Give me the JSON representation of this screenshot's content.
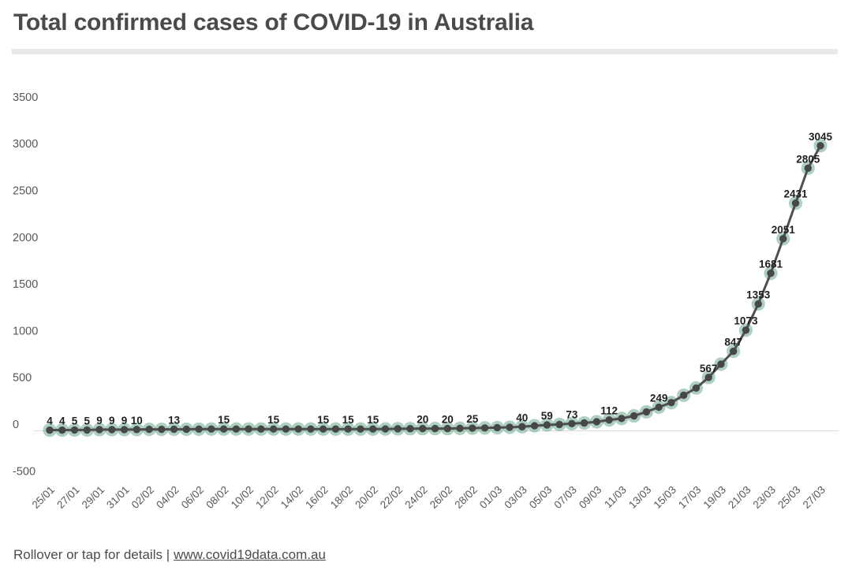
{
  "header": {
    "title": "Total confirmed cases of COVID-19 in Australia"
  },
  "footer": {
    "hint": "Rollover or tap for details |",
    "link": "www.covid19data.com.au"
  },
  "chart_data": {
    "type": "line",
    "title": "Total confirmed cases of COVID-19 in Australia",
    "xlabel": "",
    "ylabel": "",
    "ylim": [
      -500,
      3500
    ],
    "yticks": [
      -500,
      0,
      500,
      1000,
      1500,
      2000,
      2500,
      3000,
      3500
    ],
    "grid": "zero-line-only",
    "legend": "none",
    "x_tick_labels": [
      "25/01",
      "27/01",
      "29/01",
      "31/01",
      "02/02",
      "04/02",
      "06/02",
      "08/02",
      "10/02",
      "12/02",
      "14/02",
      "16/02",
      "18/02",
      "20/02",
      "22/02",
      "24/02",
      "26/02",
      "28/02",
      "01/03",
      "03/03",
      "05/03",
      "07/03",
      "09/03",
      "11/03",
      "13/03",
      "15/03",
      "17/03",
      "19/03",
      "21/03",
      "23/03",
      "25/03",
      "27/03"
    ],
    "series_name": "Total confirmed cases",
    "points": [
      {
        "date": "25/01",
        "value": 4,
        "label": "4"
      },
      {
        "date": "26/01",
        "value": 4,
        "label": "4"
      },
      {
        "date": "27/01",
        "value": 5,
        "label": "5"
      },
      {
        "date": "28/01",
        "value": 5,
        "label": "5"
      },
      {
        "date": "29/01",
        "value": 9,
        "label": "9"
      },
      {
        "date": "30/01",
        "value": 9,
        "label": "9"
      },
      {
        "date": "31/01",
        "value": 9,
        "label": "9"
      },
      {
        "date": "01/02",
        "value": 10,
        "label": "10"
      },
      {
        "date": "02/02",
        "value": 12,
        "label": ""
      },
      {
        "date": "03/02",
        "value": 12,
        "label": ""
      },
      {
        "date": "04/02",
        "value": 13,
        "label": "13"
      },
      {
        "date": "05/02",
        "value": 13,
        "label": ""
      },
      {
        "date": "06/02",
        "value": 14,
        "label": ""
      },
      {
        "date": "07/02",
        "value": 15,
        "label": ""
      },
      {
        "date": "08/02",
        "value": 15,
        "label": "15"
      },
      {
        "date": "09/02",
        "value": 15,
        "label": ""
      },
      {
        "date": "10/02",
        "value": 15,
        "label": ""
      },
      {
        "date": "11/02",
        "value": 15,
        "label": ""
      },
      {
        "date": "12/02",
        "value": 15,
        "label": "15"
      },
      {
        "date": "13/02",
        "value": 15,
        "label": ""
      },
      {
        "date": "14/02",
        "value": 15,
        "label": ""
      },
      {
        "date": "15/02",
        "value": 15,
        "label": ""
      },
      {
        "date": "16/02",
        "value": 15,
        "label": "15"
      },
      {
        "date": "17/02",
        "value": 15,
        "label": ""
      },
      {
        "date": "18/02",
        "value": 15,
        "label": "15"
      },
      {
        "date": "19/02",
        "value": 15,
        "label": ""
      },
      {
        "date": "20/02",
        "value": 15,
        "label": "15"
      },
      {
        "date": "21/02",
        "value": 16,
        "label": ""
      },
      {
        "date": "22/02",
        "value": 18,
        "label": ""
      },
      {
        "date": "23/02",
        "value": 19,
        "label": ""
      },
      {
        "date": "24/02",
        "value": 20,
        "label": "20"
      },
      {
        "date": "25/02",
        "value": 20,
        "label": ""
      },
      {
        "date": "26/02",
        "value": 20,
        "label": "20"
      },
      {
        "date": "27/02",
        "value": 23,
        "label": ""
      },
      {
        "date": "28/02",
        "value": 25,
        "label": "25"
      },
      {
        "date": "29/02",
        "value": 27,
        "label": ""
      },
      {
        "date": "01/03",
        "value": 30,
        "label": ""
      },
      {
        "date": "02/03",
        "value": 34,
        "label": ""
      },
      {
        "date": "03/03",
        "value": 40,
        "label": "40"
      },
      {
        "date": "04/03",
        "value": 50,
        "label": ""
      },
      {
        "date": "05/03",
        "value": 59,
        "label": "59"
      },
      {
        "date": "06/03",
        "value": 64,
        "label": ""
      },
      {
        "date": "07/03",
        "value": 73,
        "label": "73"
      },
      {
        "date": "08/03",
        "value": 80,
        "label": ""
      },
      {
        "date": "09/03",
        "value": 93,
        "label": ""
      },
      {
        "date": "10/03",
        "value": 112,
        "label": "112"
      },
      {
        "date": "11/03",
        "value": 128,
        "label": ""
      },
      {
        "date": "12/03",
        "value": 156,
        "label": ""
      },
      {
        "date": "13/03",
        "value": 199,
        "label": ""
      },
      {
        "date": "14/03",
        "value": 249,
        "label": "249"
      },
      {
        "date": "15/03",
        "value": 298,
        "label": ""
      },
      {
        "date": "16/03",
        "value": 377,
        "label": ""
      },
      {
        "date": "17/03",
        "value": 454,
        "label": ""
      },
      {
        "date": "18/03",
        "value": 567,
        "label": "567"
      },
      {
        "date": "19/03",
        "value": 709,
        "label": ""
      },
      {
        "date": "20/03",
        "value": 847,
        "label": "847"
      },
      {
        "date": "21/03",
        "value": 1073,
        "label": "1073"
      },
      {
        "date": "22/03",
        "value": 1353,
        "label": "1353"
      },
      {
        "date": "23/03",
        "value": 1681,
        "label": "1681"
      },
      {
        "date": "24/03",
        "value": 2051,
        "label": "2051"
      },
      {
        "date": "25/03",
        "value": 2431,
        "label": "2431"
      },
      {
        "date": "26/03",
        "value": 2805,
        "label": "2805"
      },
      {
        "date": "27/03",
        "value": 3045,
        "label": "3045"
      }
    ],
    "colors": {
      "line": "#4f4f4f",
      "dot": "#474747",
      "halo": "rgba(108,169,140,0.55)",
      "point_label": "#1f1f1f",
      "axis_text": "#585858",
      "gridline": "#dcdcdc",
      "title_text": "#4a4a4a",
      "separator": "#e9e9e9"
    }
  }
}
